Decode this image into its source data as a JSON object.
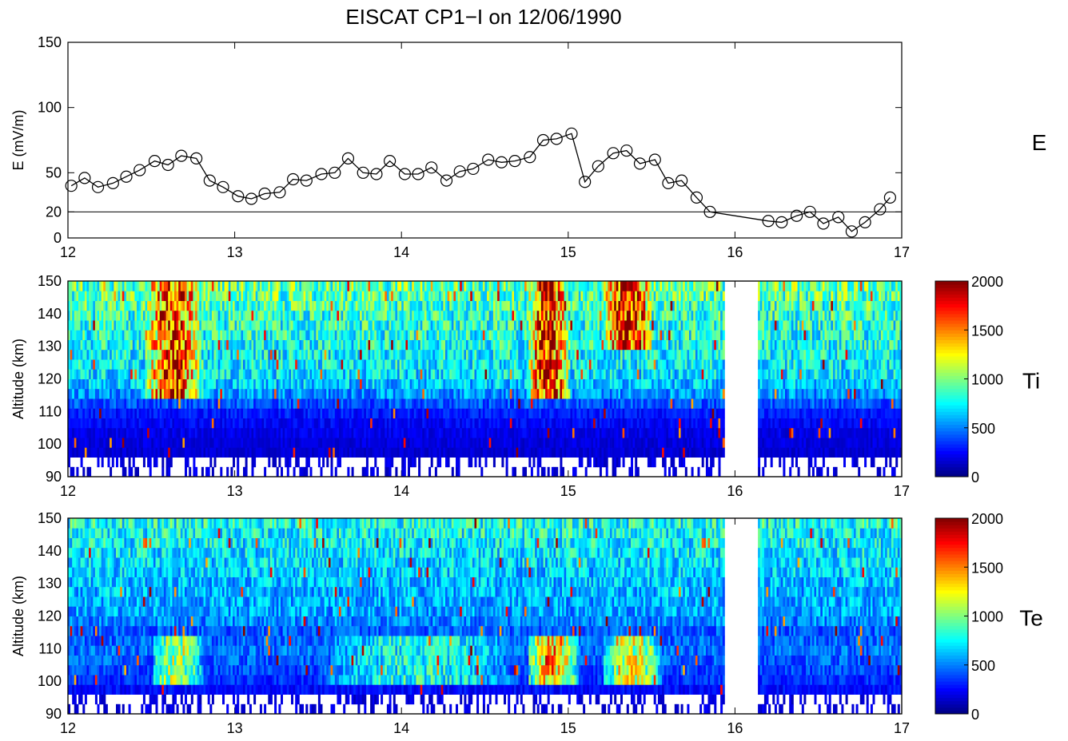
{
  "title": "EISCAT CP1−I on 12/06/1990",
  "chart_data": [
    {
      "type": "line",
      "panel": "E",
      "side_label": "E",
      "xlabel": "",
      "ylabel": "E (mV/m)",
      "xlim": [
        12,
        17
      ],
      "ylim": [
        0,
        150
      ],
      "x_ticks": [
        12,
        13,
        14,
        15,
        16,
        17
      ],
      "y_ticks": [
        0,
        20,
        50,
        100,
        150
      ],
      "reference_line": 20,
      "marker": "open-circle",
      "series": [
        {
          "x": [
            12.02,
            12.1,
            12.18,
            12.27,
            12.35,
            12.43,
            12.52,
            12.6,
            12.68,
            12.77,
            12.85,
            12.93,
            13.02,
            13.1,
            13.18,
            13.27,
            13.35,
            13.43,
            13.52,
            13.6,
            13.68,
            13.77,
            13.85,
            13.93,
            14.02,
            14.1,
            14.18,
            14.27,
            14.35,
            14.43,
            14.52,
            14.6,
            14.68,
            14.77,
            14.85,
            14.93,
            15.02,
            15.1,
            15.18,
            15.27,
            15.35,
            15.43,
            15.52,
            15.6,
            15.68,
            15.77,
            15.85,
            16.2,
            16.28,
            16.37,
            16.45,
            16.53,
            16.62,
            16.7,
            16.78,
            16.87,
            16.93
          ],
          "y": [
            40,
            46,
            39,
            42,
            47,
            52,
            59,
            56,
            63,
            61,
            44,
            39,
            32,
            30,
            34,
            35,
            45,
            44,
            49,
            50,
            61,
            50,
            49,
            59,
            49,
            49,
            54,
            44,
            51,
            53,
            60,
            58,
            59,
            62,
            75,
            76,
            80,
            43,
            55,
            65,
            67,
            57,
            60,
            42,
            44,
            31,
            20,
            13,
            12,
            17,
            20,
            11,
            16,
            5,
            12,
            22,
            31
          ]
        }
      ]
    },
    {
      "type": "heatmap",
      "panel": "Ti",
      "side_label": "Ti",
      "ylabel": "Altitude (km)",
      "xlim": [
        12,
        17
      ],
      "ylim": [
        90,
        150
      ],
      "x_ticks": [
        12,
        13,
        14,
        15,
        16,
        17
      ],
      "y_ticks": [
        90,
        100,
        110,
        120,
        130,
        140,
        150
      ],
      "colorbar": {
        "range": [
          0,
          2000
        ],
        "ticks": [
          0,
          500,
          1000,
          1500,
          2000
        ],
        "colormap": "jet"
      },
      "data_gap": [
        15.93,
        16.13
      ],
      "altitude_profile": [
        {
          "altitude": 95,
          "value": 150
        },
        {
          "altitude": 100,
          "value": 180
        },
        {
          "altitude": 105,
          "value": 220
        },
        {
          "altitude": 110,
          "value": 300
        },
        {
          "altitude": 115,
          "value": 520
        },
        {
          "altitude": 120,
          "value": 700
        },
        {
          "altitude": 130,
          "value": 780
        },
        {
          "altitude": 140,
          "value": 850
        },
        {
          "altitude": 148,
          "value": 950
        }
      ],
      "enhancements": [
        {
          "time_start": 12.45,
          "time_end": 12.8,
          "alt_min": 115,
          "alt_max": 150,
          "peak": 1650
        },
        {
          "time_start": 14.75,
          "time_end": 15.0,
          "alt_min": 115,
          "alt_max": 150,
          "peak": 1750
        },
        {
          "time_start": 15.2,
          "time_end": 15.5,
          "alt_min": 130,
          "alt_max": 150,
          "peak": 1800
        }
      ]
    },
    {
      "type": "heatmap",
      "panel": "Te",
      "side_label": "Te",
      "ylabel": "Altitude (km)",
      "xlim": [
        12,
        17
      ],
      "ylim": [
        90,
        150
      ],
      "x_ticks": [
        12,
        13,
        14,
        15,
        16,
        17
      ],
      "y_ticks": [
        90,
        100,
        110,
        120,
        130,
        140,
        150
      ],
      "colorbar": {
        "range": [
          0,
          2000
        ],
        "ticks": [
          0,
          500,
          1000,
          1500,
          2000
        ],
        "colormap": "jet"
      },
      "data_gap": [
        15.93,
        16.13
      ],
      "altitude_profile": [
        {
          "altitude": 95,
          "value": 200
        },
        {
          "altitude": 100,
          "value": 320
        },
        {
          "altitude": 105,
          "value": 420
        },
        {
          "altitude": 110,
          "value": 470
        },
        {
          "altitude": 115,
          "value": 420
        },
        {
          "altitude": 120,
          "value": 560
        },
        {
          "altitude": 130,
          "value": 620
        },
        {
          "altitude": 140,
          "value": 720
        },
        {
          "altitude": 148,
          "value": 800
        }
      ],
      "enhancements": [
        {
          "time_start": 12.5,
          "time_end": 12.8,
          "alt_min": 100,
          "alt_max": 114,
          "peak": 1100
        },
        {
          "time_start": 13.5,
          "time_end": 14.7,
          "alt_min": 100,
          "alt_max": 114,
          "peak": 800
        },
        {
          "time_start": 14.75,
          "time_end": 15.05,
          "alt_min": 100,
          "alt_max": 114,
          "peak": 1350
        },
        {
          "time_start": 15.2,
          "time_end": 15.55,
          "alt_min": 100,
          "alt_max": 114,
          "peak": 1150
        }
      ]
    }
  ]
}
